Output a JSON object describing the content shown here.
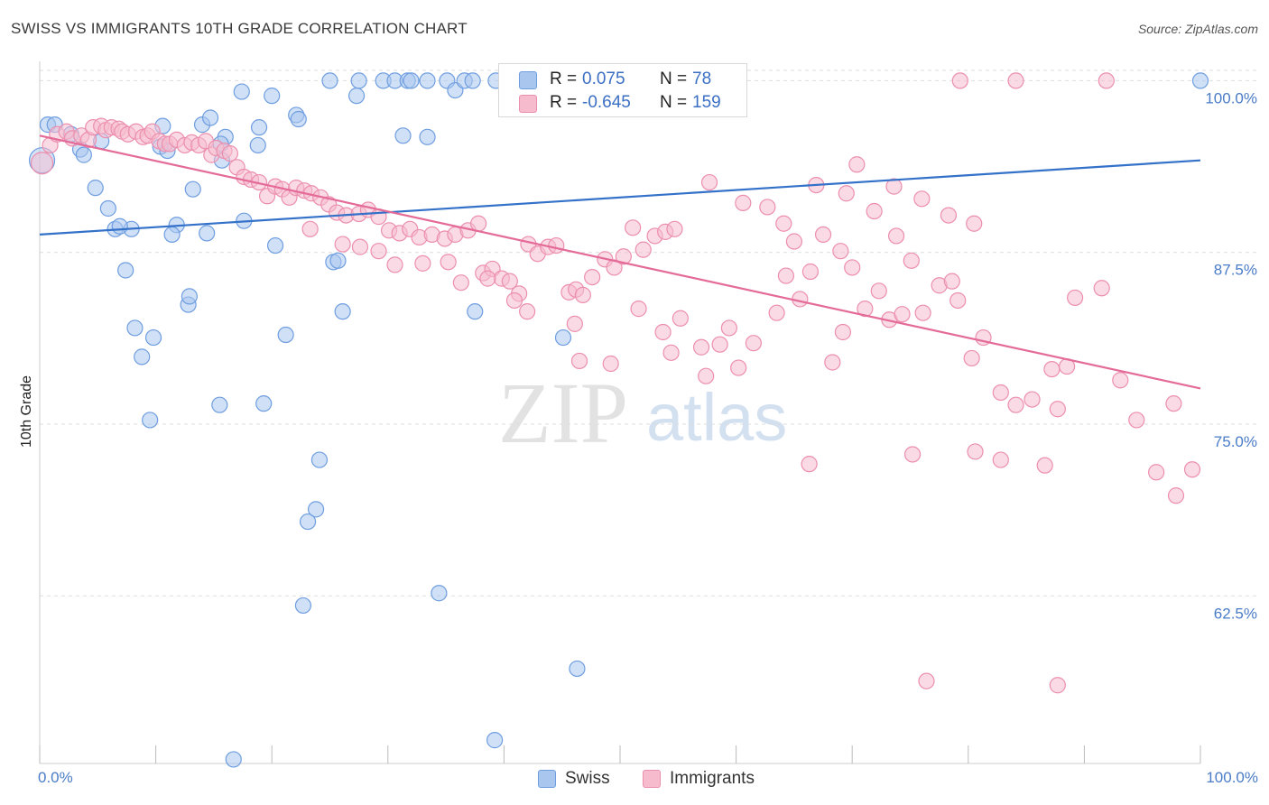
{
  "title": "SWISS VS IMMIGRANTS 10TH GRADE CORRELATION CHART",
  "source": "Source: ZipAtlas.com",
  "watermark": {
    "zip": "ZIP",
    "atlas": "atlas"
  },
  "stats": [
    {
      "r_label": "R =",
      "r_value": "0.075",
      "n_label": "N =",
      "n_value": "78",
      "color": "#a9c6ee"
    },
    {
      "r_label": "R =",
      "r_value": "-0.645",
      "n_label": "N =",
      "n_value": "159",
      "color": "#f6bccd"
    }
  ],
  "legend": [
    {
      "label": "Swiss",
      "color": "#a9c6ee"
    },
    {
      "label": "Immigrants",
      "color": "#f6bccd"
    }
  ],
  "colors": {
    "swiss_fill": "#a9c6ee",
    "swiss_stroke": "#6f9ee0",
    "swiss_line": "#3471c9",
    "imm_fill": "#f6bccd",
    "imm_stroke": "#ec8fae",
    "imm_line": "#e46b97",
    "grid": "#dddddd",
    "tick_label": "#4a7cc8"
  },
  "chart_data": {
    "type": "scatter",
    "title": "SWISS VS IMMIGRANTS 10TH GRADE CORRELATION CHART",
    "xlabel": "",
    "ylabel": "10th Grade",
    "x_tick_labels": [
      "0.0%",
      "100.0%"
    ],
    "y_ticks": [
      62.5,
      75.0,
      87.5,
      100.0
    ],
    "y_tick_labels": [
      "62.5%",
      "75.0%",
      "87.5%",
      "100.0%"
    ],
    "xlim": [
      0,
      100
    ],
    "ylim": [
      50.3,
      101.8
    ],
    "grid": "horizontal dashed",
    "legend_position": "bottom-center",
    "series": [
      {
        "name": "Swiss",
        "trend": {
          "x": [
            0,
            100
          ],
          "y": [
            88.8,
            94.2
          ]
        },
        "points": [
          [
            0.7,
            96.8
          ],
          [
            1.3,
            96.8
          ],
          [
            2.7,
            96.1
          ],
          [
            3.5,
            95.0
          ],
          [
            5.3,
            95.6
          ],
          [
            3.8,
            94.6
          ],
          [
            4.8,
            92.2
          ],
          [
            5.9,
            90.7
          ],
          [
            6.5,
            89.2
          ],
          [
            7.9,
            89.2
          ],
          [
            6.9,
            89.4
          ],
          [
            10.4,
            95.2
          ],
          [
            10.6,
            96.7
          ],
          [
            11.0,
            94.9
          ],
          [
            11.8,
            89.5
          ],
          [
            11.4,
            88.8
          ],
          [
            13.2,
            92.1
          ],
          [
            14.4,
            88.9
          ],
          [
            14.0,
            96.8
          ],
          [
            14.7,
            97.3
          ],
          [
            15.7,
            94.2
          ],
          [
            16.0,
            95.9
          ],
          [
            15.6,
            95.4
          ],
          [
            17.6,
            89.8
          ],
          [
            17.4,
            99.2
          ],
          [
            18.8,
            95.3
          ],
          [
            18.9,
            96.6
          ],
          [
            20.0,
            98.9
          ],
          [
            22.1,
            97.5
          ],
          [
            22.3,
            97.2
          ],
          [
            20.3,
            88.0
          ],
          [
            25.0,
            100.0
          ],
          [
            27.3,
            98.9
          ],
          [
            27.5,
            100.0
          ],
          [
            29.6,
            100.0
          ],
          [
            30.6,
            100.0
          ],
          [
            31.7,
            100.0
          ],
          [
            32.0,
            100.0
          ],
          [
            33.4,
            100.0
          ],
          [
            35.1,
            100.0
          ],
          [
            35.8,
            99.3
          ],
          [
            36.6,
            100.0
          ],
          [
            37.3,
            100.0
          ],
          [
            39.3,
            100.0
          ],
          [
            41.3,
            100.0
          ],
          [
            42.0,
            100.0
          ],
          [
            47.5,
            100.0
          ],
          [
            48.4,
            100.0
          ],
          [
            50.1,
            100.0
          ],
          [
            51.0,
            100.0
          ],
          [
            49.5,
            100.0
          ],
          [
            52.9,
            100.0
          ],
          [
            31.3,
            96.0
          ],
          [
            33.4,
            95.9
          ],
          [
            7.4,
            86.2
          ],
          [
            8.2,
            82.0
          ],
          [
            9.8,
            81.3
          ],
          [
            8.8,
            79.9
          ],
          [
            12.8,
            83.7
          ],
          [
            12.9,
            84.3
          ],
          [
            25.3,
            86.8
          ],
          [
            25.7,
            86.9
          ],
          [
            26.1,
            83.2
          ],
          [
            21.2,
            81.5
          ],
          [
            37.5,
            83.2
          ],
          [
            45.1,
            81.3
          ],
          [
            9.5,
            75.3
          ],
          [
            15.5,
            76.4
          ],
          [
            19.3,
            76.5
          ],
          [
            24.1,
            72.4
          ],
          [
            23.8,
            68.8
          ],
          [
            23.1,
            67.9
          ],
          [
            22.7,
            61.8
          ],
          [
            34.4,
            62.7
          ],
          [
            46.3,
            57.2
          ],
          [
            39.2,
            52.0
          ],
          [
            16.7,
            50.6
          ],
          [
            100,
            100.0
          ]
        ]
      },
      {
        "name": "Immigrants",
        "trend": {
          "x": [
            0,
            100
          ],
          "y": [
            96.0,
            77.6
          ]
        },
        "points": [
          [
            0.9,
            95.3
          ],
          [
            1.5,
            96.1
          ],
          [
            2.3,
            96.3
          ],
          [
            2.8,
            95.8
          ],
          [
            3.6,
            96.0
          ],
          [
            4.2,
            95.7
          ],
          [
            4.6,
            96.6
          ],
          [
            5.3,
            96.7
          ],
          [
            5.7,
            96.4
          ],
          [
            6.2,
            96.6
          ],
          [
            6.8,
            96.5
          ],
          [
            7.1,
            96.3
          ],
          [
            7.6,
            96.1
          ],
          [
            8.3,
            96.3
          ],
          [
            8.9,
            95.9
          ],
          [
            9.3,
            96.0
          ],
          [
            9.7,
            96.3
          ],
          [
            10.3,
            95.6
          ],
          [
            10.8,
            95.4
          ],
          [
            11.2,
            95.4
          ],
          [
            11.8,
            95.7
          ],
          [
            12.5,
            95.3
          ],
          [
            13.1,
            95.5
          ],
          [
            13.7,
            95.3
          ],
          [
            14.3,
            95.6
          ],
          [
            14.8,
            94.6
          ],
          [
            15.2,
            95.1
          ],
          [
            15.9,
            94.9
          ],
          [
            16.4,
            94.7
          ],
          [
            17.0,
            93.7
          ],
          [
            17.6,
            93.0
          ],
          [
            18.2,
            92.8
          ],
          [
            18.9,
            92.6
          ],
          [
            19.6,
            91.6
          ],
          [
            20.3,
            92.3
          ],
          [
            20.9,
            92.1
          ],
          [
            21.5,
            91.5
          ],
          [
            22.1,
            92.2
          ],
          [
            22.8,
            92.0
          ],
          [
            23.4,
            91.8
          ],
          [
            24.2,
            91.5
          ],
          [
            24.9,
            91.0
          ],
          [
            25.6,
            90.4
          ],
          [
            26.4,
            90.2
          ],
          [
            27.5,
            90.3
          ],
          [
            28.3,
            90.6
          ],
          [
            29.2,
            90.1
          ],
          [
            30.1,
            89.1
          ],
          [
            31.0,
            88.9
          ],
          [
            31.9,
            89.2
          ],
          [
            32.7,
            88.6
          ],
          [
            33.8,
            88.8
          ],
          [
            34.9,
            88.5
          ],
          [
            35.8,
            88.8
          ],
          [
            36.9,
            89.1
          ],
          [
            37.8,
            89.6
          ],
          [
            38.2,
            86.0
          ],
          [
            39.0,
            86.3
          ],
          [
            39.8,
            85.6
          ],
          [
            40.5,
            85.4
          ],
          [
            41.3,
            84.5
          ],
          [
            42.1,
            88.1
          ],
          [
            42.9,
            87.4
          ],
          [
            43.8,
            87.9
          ],
          [
            44.5,
            88.0
          ],
          [
            45.6,
            84.6
          ],
          [
            46.2,
            84.8
          ],
          [
            46.8,
            84.4
          ],
          [
            47.6,
            85.7
          ],
          [
            48.7,
            87.0
          ],
          [
            49.5,
            86.4
          ],
          [
            50.3,
            87.2
          ],
          [
            51.1,
            89.3
          ],
          [
            52.0,
            87.7
          ],
          [
            53.0,
            88.7
          ],
          [
            53.9,
            89.0
          ],
          [
            54.7,
            89.2
          ],
          [
            23.3,
            89.2
          ],
          [
            26.1,
            88.1
          ],
          [
            27.6,
            87.9
          ],
          [
            29.2,
            87.6
          ],
          [
            30.6,
            86.6
          ],
          [
            33.0,
            86.7
          ],
          [
            35.2,
            86.8
          ],
          [
            36.3,
            85.3
          ],
          [
            38.6,
            85.6
          ],
          [
            40.9,
            84.0
          ],
          [
            42.0,
            83.2
          ],
          [
            46.1,
            82.3
          ],
          [
            46.5,
            79.6
          ],
          [
            49.2,
            79.4
          ],
          [
            51.6,
            83.4
          ],
          [
            53.7,
            81.7
          ],
          [
            54.4,
            80.2
          ],
          [
            55.2,
            82.7
          ],
          [
            57.0,
            80.6
          ],
          [
            57.4,
            78.5
          ],
          [
            58.6,
            80.8
          ],
          [
            59.4,
            82.0
          ],
          [
            60.2,
            79.1
          ],
          [
            61.5,
            80.9
          ],
          [
            63.5,
            83.1
          ],
          [
            64.3,
            85.8
          ],
          [
            65.5,
            84.1
          ],
          [
            66.4,
            86.1
          ],
          [
            68.3,
            79.5
          ],
          [
            69.2,
            81.7
          ],
          [
            70.0,
            86.4
          ],
          [
            71.1,
            83.4
          ],
          [
            72.3,
            84.7
          ],
          [
            73.2,
            82.6
          ],
          [
            74.3,
            83.0
          ],
          [
            75.1,
            86.9
          ],
          [
            76.1,
            83.1
          ],
          [
            77.5,
            85.1
          ],
          [
            78.6,
            85.4
          ],
          [
            79.1,
            84.0
          ],
          [
            80.3,
            79.8
          ],
          [
            81.3,
            81.3
          ],
          [
            82.8,
            77.3
          ],
          [
            84.1,
            76.4
          ],
          [
            85.5,
            76.8
          ],
          [
            87.2,
            79.0
          ],
          [
            88.5,
            79.2
          ],
          [
            89.2,
            84.2
          ],
          [
            91.5,
            84.9
          ],
          [
            93.1,
            78.2
          ],
          [
            94.5,
            75.3
          ],
          [
            96.2,
            71.5
          ],
          [
            97.9,
            69.8
          ],
          [
            99.3,
            71.7
          ],
          [
            70.4,
            93.9
          ],
          [
            66.9,
            92.4
          ],
          [
            69.5,
            91.8
          ],
          [
            73.6,
            92.3
          ],
          [
            76.0,
            91.4
          ],
          [
            78.3,
            90.2
          ],
          [
            80.5,
            89.6
          ],
          [
            57.7,
            92.6
          ],
          [
            60.6,
            91.1
          ],
          [
            62.7,
            90.8
          ],
          [
            64.1,
            89.6
          ],
          [
            65.0,
            88.3
          ],
          [
            67.5,
            88.8
          ],
          [
            69.0,
            87.6
          ],
          [
            71.9,
            90.5
          ],
          [
            73.8,
            88.7
          ],
          [
            66.3,
            72.1
          ],
          [
            75.2,
            72.8
          ],
          [
            80.6,
            73.0
          ],
          [
            82.8,
            72.4
          ],
          [
            86.6,
            72.0
          ],
          [
            87.7,
            76.1
          ],
          [
            97.7,
            76.5
          ],
          [
            79.3,
            100.0
          ],
          [
            84.1,
            100.0
          ],
          [
            91.9,
            100.0
          ],
          [
            76.4,
            56.3
          ],
          [
            87.7,
            56.0
          ]
        ]
      }
    ]
  }
}
